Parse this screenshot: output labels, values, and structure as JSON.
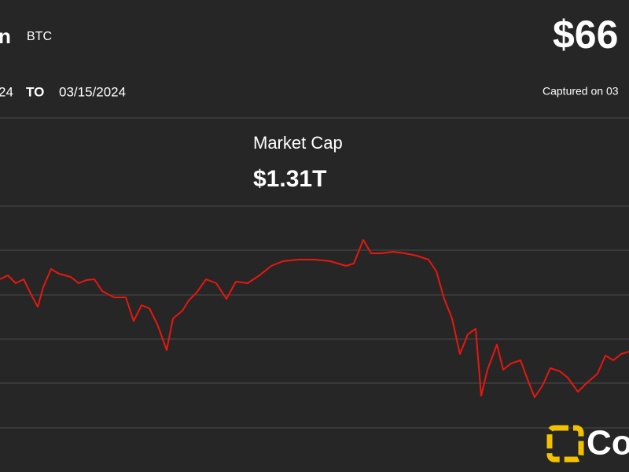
{
  "header": {
    "name": "n",
    "symbol": "BTC",
    "price": "$66",
    "from_date": "24",
    "to_word": "TO",
    "to_date": "03/15/2024",
    "captured": "Captured on 03"
  },
  "chart_data": {
    "type": "line",
    "title": "Market Cap",
    "subtitle": "$1.31T",
    "x": [
      0,
      10,
      20,
      30,
      40,
      48,
      55,
      65,
      75,
      90,
      100,
      110,
      120,
      130,
      145,
      160,
      170,
      180,
      190,
      200,
      212,
      220,
      232,
      240,
      250,
      262,
      275,
      288,
      300,
      315,
      330,
      345,
      360,
      380,
      400,
      420,
      440,
      450,
      462,
      472,
      485,
      500,
      515,
      530,
      545,
      555,
      565,
      575,
      585,
      595,
      605,
      612,
      620,
      632,
      640,
      650,
      662,
      672,
      680,
      690,
      700,
      712,
      722,
      735,
      745,
      760,
      770,
      780,
      790,
      800
    ],
    "series": [
      {
        "color": "#e8170f",
        "values": [
          189,
          194,
          184,
          189,
          169,
          154,
          179,
          202,
          196,
          192,
          184,
          188,
          189,
          174,
          166,
          166,
          136,
          156,
          152,
          132,
          99,
          139,
          149,
          162,
          172,
          189,
          184,
          164,
          186,
          184,
          194,
          206,
          212,
          214,
          214,
          212,
          206,
          209,
          239,
          222,
          222,
          224,
          222,
          219,
          214,
          199,
          164,
          139,
          94,
          119,
          126,
          41,
          74,
          106,
          74,
          82,
          86,
          59,
          39,
          54,
          76,
          72,
          64,
          46,
          56,
          69,
          92,
          86,
          94,
          97
        ]
      }
    ],
    "xlim": [
      0,
      800
    ],
    "ylim": [
      0,
      282
    ]
  },
  "logo": {
    "text": "Co"
  }
}
